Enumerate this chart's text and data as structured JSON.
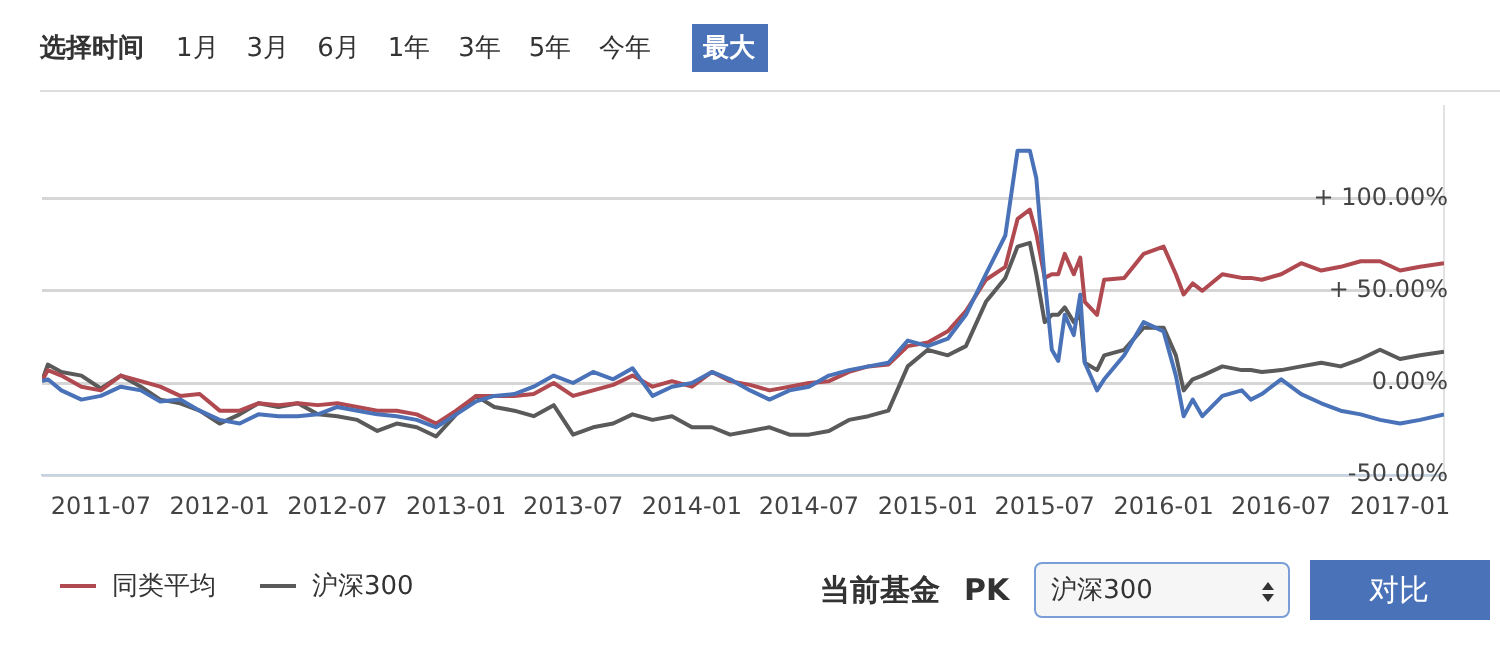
{
  "chart_data": {
    "type": "line",
    "x": [
      "2011-04-01",
      "2011-04-10",
      "2011-05-01",
      "2011-06-01",
      "2011-07-01",
      "2011-08-01",
      "2011-09-01",
      "2011-10-01",
      "2011-11-01",
      "2011-12-01",
      "2012-01-01",
      "2012-02-01",
      "2012-03-01",
      "2012-04-01",
      "2012-05-01",
      "2012-06-01",
      "2012-07-01",
      "2012-08-01",
      "2012-09-01",
      "2012-10-01",
      "2012-11-01",
      "2012-12-01",
      "2013-01-01",
      "2013-02-01",
      "2013-03-01",
      "2013-04-01",
      "2013-05-01",
      "2013-06-01",
      "2013-07-01",
      "2013-08-01",
      "2013-09-01",
      "2013-10-01",
      "2013-11-01",
      "2013-12-01",
      "2014-01-01",
      "2014-02-01",
      "2014-03-01",
      "2014-04-01",
      "2014-05-01",
      "2014-06-01",
      "2014-07-01",
      "2014-08-01",
      "2014-09-01",
      "2014-10-01",
      "2014-11-01",
      "2014-12-01",
      "2015-01-01",
      "2015-02-01",
      "2015-03-01",
      "2015-04-01",
      "2015-05-01",
      "2015-05-20",
      "2015-06-08",
      "2015-06-18",
      "2015-07-01",
      "2015-07-12",
      "2015-07-22",
      "2015-08-01",
      "2015-08-15",
      "2015-08-25",
      "2015-09-01",
      "2015-09-20",
      "2015-10-01",
      "2015-11-01",
      "2015-12-01",
      "2016-01-01",
      "2016-01-20",
      "2016-02-01",
      "2016-02-15",
      "2016-03-01",
      "2016-04-01",
      "2016-05-01",
      "2016-05-15",
      "2016-06-01",
      "2016-07-01",
      "2016-08-01",
      "2016-09-01",
      "2016-10-01",
      "2016-11-01",
      "2016-12-01",
      "2017-01-01",
      "2017-02-01",
      "2017-03-10"
    ],
    "series": [
      {
        "color": "#4a72b8",
        "values": [
          1,
          2,
          -4,
          -9,
          -7,
          -2,
          -4,
          -10,
          -9,
          -15,
          -20,
          -22,
          -17,
          -18,
          -18,
          -17,
          -13,
          -15,
          -17,
          -18,
          -20,
          -24,
          -17,
          -10,
          -7,
          -6,
          -2,
          4,
          0,
          6,
          2,
          8,
          -7,
          -2,
          0,
          6,
          2,
          -4,
          -9,
          -4,
          -2,
          4,
          7,
          9,
          11,
          23,
          20,
          24,
          37,
          59,
          80,
          126,
          126,
          111,
          56,
          18,
          12,
          37,
          26,
          48,
          11,
          -4,
          2,
          15,
          33,
          28,
          4,
          -18,
          -9,
          -18,
          -7,
          -4,
          -9,
          -6,
          2,
          -6,
          -11,
          -15,
          -17,
          -20,
          -22,
          -20,
          -17
        ]
      },
      {
        "name": "同类平均",
        "color": "#b04a50",
        "values": [
          1,
          7,
          4,
          -2,
          -4,
          4,
          1,
          -2,
          -7,
          -6,
          -15,
          -15,
          -11,
          -12,
          -11,
          -12,
          -11,
          -13,
          -15,
          -15,
          -17,
          -22,
          -15,
          -7,
          -7,
          -7,
          -6,
          0,
          -7,
          -4,
          -1,
          4,
          -2,
          1,
          -2,
          6,
          1,
          -1,
          -4,
          -2,
          0,
          1,
          6,
          9,
          10,
          20,
          22,
          28,
          39,
          56,
          63,
          89,
          94,
          81,
          57,
          59,
          59,
          70,
          59,
          68,
          44,
          37,
          56,
          57,
          70,
          74,
          59,
          48,
          54,
          50,
          59,
          57,
          57,
          56,
          59,
          65,
          61,
          63,
          66,
          66,
          61,
          63,
          65
        ]
      },
      {
        "name": "沪深300",
        "color": "#5a5a5a",
        "values": [
          1,
          10,
          6,
          4,
          -3,
          4,
          -2,
          -9,
          -11,
          -15,
          -22,
          -17,
          -11,
          -13,
          -11,
          -17,
          -18,
          -20,
          -26,
          -22,
          -24,
          -29,
          -17,
          -7,
          -13,
          -15,
          -18,
          -12,
          -28,
          -24,
          -22,
          -17,
          -20,
          -18,
          -24,
          -24,
          -28,
          -26,
          -24,
          -28,
          -28,
          -26,
          -20,
          -18,
          -15,
          9,
          18,
          15,
          20,
          44,
          57,
          74,
          76,
          59,
          33,
          37,
          37,
          41,
          33,
          37,
          11,
          7,
          15,
          18,
          30,
          30,
          15,
          -4,
          2,
          4,
          9,
          7,
          7,
          6,
          7,
          9,
          11,
          9,
          13,
          18,
          13,
          15,
          17
        ]
      }
    ],
    "xlim": [
      "2011-04-01",
      "2017-03-10"
    ],
    "xticks": [
      "2011-07",
      "2012-01",
      "2012-07",
      "2013-01",
      "2013-07",
      "2014-01",
      "2014-07",
      "2015-01",
      "2015-07",
      "2016-01",
      "2016-07",
      "2017-01"
    ],
    "ylim": [
      -50,
      150
    ],
    "yticks": [
      {
        "value": 100,
        "label": "+ 100.00%"
      },
      {
        "value": 50,
        "label": "+ 50.00%"
      },
      {
        "value": 0,
        "label": "0.00%"
      },
      {
        "value": -50,
        "label": "-50.00%"
      }
    ],
    "grid": "y",
    "legend": "bottom",
    "marker": "none",
    "line_style": "solid",
    "annotations": [
      "选择时间",
      "1月",
      "3月",
      "6月",
      "1年",
      "3年",
      "5年",
      "今年",
      "最大",
      "当前基金",
      "PK",
      "沪深300",
      "对比"
    ]
  }
}
